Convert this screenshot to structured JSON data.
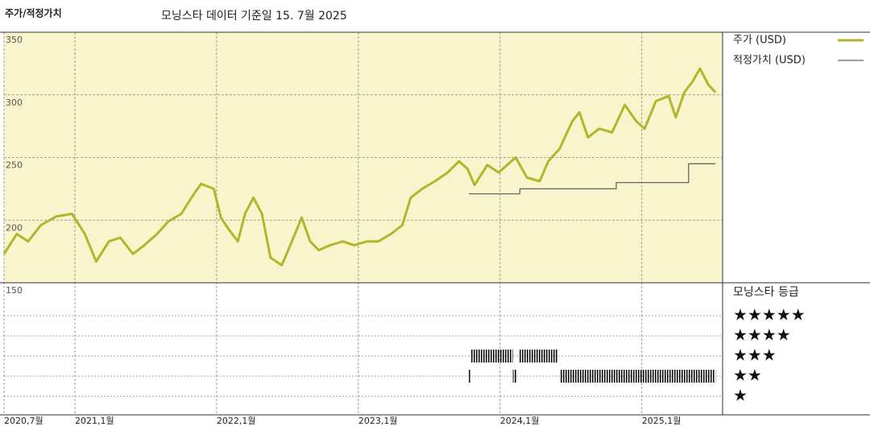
{
  "chart_data": {
    "type": "line",
    "title": "주가/적정가치",
    "subtitle": "모닝스타 데이터 기준일 15. 7월 2025",
    "xlim": [
      2020.5,
      2025.57
    ],
    "xticks": [
      {
        "value": 2020.5,
        "label": "2020,7월"
      },
      {
        "value": 2021.0,
        "label": "2021,1월"
      },
      {
        "value": 2022.0,
        "label": "2022,1월"
      },
      {
        "value": 2023.0,
        "label": "2023,1월"
      },
      {
        "value": 2024.0,
        "label": "2024,1월"
      },
      {
        "value": 2025.0,
        "label": "2025,1월"
      }
    ],
    "ylim": [
      150,
      350
    ],
    "yticks": [
      150,
      200,
      250,
      300,
      350
    ],
    "grid": true,
    "legend": "top-right",
    "series": [
      {
        "name": "주가 (USD)",
        "color": "#b3b62c",
        "x": [
          2020.5,
          2020.59,
          2020.67,
          2020.76,
          2020.87,
          2020.98,
          2021.07,
          2021.15,
          2021.24,
          2021.32,
          2021.41,
          2021.49,
          2021.58,
          2021.66,
          2021.75,
          2021.84,
          2021.89,
          2021.98,
          2022.03,
          2022.09,
          2022.15,
          2022.2,
          2022.26,
          2022.32,
          2022.38,
          2022.46,
          2022.52,
          2022.6,
          2022.66,
          2022.72,
          2022.8,
          2022.89,
          2022.97,
          2023.06,
          2023.14,
          2023.23,
          2023.31,
          2023.37,
          2023.45,
          2023.54,
          2023.63,
          2023.71,
          2023.77,
          2023.82,
          2023.91,
          2023.99,
          2024.11,
          2024.19,
          2024.28,
          2024.34,
          2024.42,
          2024.51,
          2024.56,
          2024.62,
          2024.7,
          2024.79,
          2024.88,
          2024.96,
          2025.02,
          2025.1,
          2025.19,
          2025.24,
          2025.3,
          2025.36,
          2025.41,
          2025.47,
          2025.52
        ],
        "values": [
          173,
          189,
          183,
          196,
          203,
          205,
          189,
          167,
          183,
          186,
          173,
          180,
          189,
          199,
          205,
          221,
          229,
          225,
          202,
          192,
          183,
          205,
          218,
          205,
          170,
          164,
          180,
          202,
          183,
          176,
          180,
          183,
          180,
          183,
          183,
          189,
          196,
          218,
          225,
          231,
          238,
          247,
          241,
          228,
          244,
          238,
          250,
          234,
          231,
          247,
          257,
          279,
          286,
          266,
          273,
          270,
          292,
          279,
          273,
          295,
          299,
          282,
          302,
          311,
          321,
          308,
          302
        ]
      },
      {
        "name": "적정가치 (USD)",
        "color": "#666666",
        "x": [
          2023.78,
          2024.14,
          2024.14,
          2024.82,
          2024.82,
          2025.33,
          2025.33,
          2025.52
        ],
        "values": [
          221,
          221,
          225,
          225,
          230,
          230,
          245,
          245
        ]
      }
    ],
    "rating": {
      "title": "모닝스타 등급",
      "color": "#111111",
      "levels": [
        {
          "value": 5,
          "label": "★★★★★"
        },
        {
          "value": 4,
          "label": "★★★★"
        },
        {
          "value": 3,
          "label": "★★★"
        },
        {
          "value": 2,
          "label": "★★"
        },
        {
          "value": 1,
          "label": "★"
        }
      ],
      "periods": [
        {
          "start": 2023.78,
          "end": 2023.79,
          "stars": 2
        },
        {
          "start": 2023.79,
          "end": 2024.09,
          "stars": 3
        },
        {
          "start": 2024.09,
          "end": 2024.12,
          "stars": 2
        },
        {
          "start": 2024.13,
          "end": 2024.41,
          "stars": 3
        },
        {
          "start": 2024.42,
          "end": 2025.52,
          "stars": 2
        }
      ]
    }
  }
}
